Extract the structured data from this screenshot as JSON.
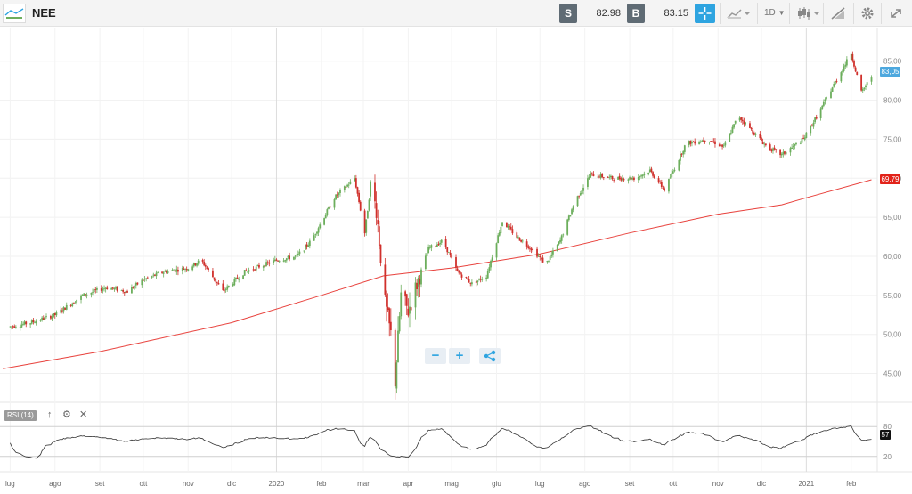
{
  "header": {
    "ticker": "NEE",
    "sell_tag": "S",
    "sell_price": "82.98",
    "buy_tag": "B",
    "buy_price": "83.15",
    "timeframe": "1D",
    "icons": [
      "crosshair-icon",
      "chart-style-icon",
      "candlestick-icon",
      "drawing-tools-icon",
      "settings-icon",
      "fullscreen-icon"
    ]
  },
  "zoom_controls": {
    "minus": "−",
    "plus": "+",
    "share_icon": "share-icon"
  },
  "colors": {
    "up": "#6cae5c",
    "down": "#d0302c",
    "ma": "#e8413c",
    "accent": "#2ea4e0",
    "rsi": "#333333",
    "current_price_bg": "#4ea8de",
    "ma_tag_bg": "#e2231a"
  },
  "chart_data": [
    {
      "type": "candlestick",
      "symbol": "NEE",
      "x_tick_labels": [
        "lug",
        "ago",
        "set",
        "ott",
        "nov",
        "dic",
        "2020",
        "feb",
        "mar",
        "apr",
        "mag",
        "giu",
        "lug",
        "ago",
        "set",
        "ott",
        "nov",
        "dic",
        "2021",
        "feb"
      ],
      "y_tick_labels": [
        "45,00",
        "50,00",
        "55,00",
        "60,00",
        "65,00",
        "70,00",
        "75,00",
        "80,00",
        "85,00"
      ],
      "ylim": [
        41.3,
        89.3
      ],
      "current_price_label": "83,05",
      "ma_label": "69,79",
      "price_path_anchors": [
        {
          "x": "2019-07-01",
          "y": 51
        },
        {
          "x": "2019-07-15",
          "y": 51.5
        },
        {
          "x": "2019-08-01",
          "y": 52.5
        },
        {
          "x": "2019-08-20",
          "y": 55
        },
        {
          "x": "2019-09-05",
          "y": 56
        },
        {
          "x": "2019-09-20",
          "y": 55.5
        },
        {
          "x": "2019-10-01",
          "y": 57
        },
        {
          "x": "2019-10-15",
          "y": 58
        },
        {
          "x": "2019-11-01",
          "y": 58.5
        },
        {
          "x": "2019-11-10",
          "y": 59.5
        },
        {
          "x": "2019-11-25",
          "y": 55.5
        },
        {
          "x": "2019-12-10",
          "y": 58
        },
        {
          "x": "2020-01-01",
          "y": 59.5
        },
        {
          "x": "2020-01-15",
          "y": 60
        },
        {
          "x": "2020-01-25",
          "y": 62
        },
        {
          "x": "2020-02-10",
          "y": 67.5
        },
        {
          "x": "2020-02-24",
          "y": 70
        },
        {
          "x": "2020-03-02",
          "y": 63
        },
        {
          "x": "2020-03-06",
          "y": 69
        },
        {
          "x": "2020-03-10",
          "y": 66
        },
        {
          "x": "2020-03-16",
          "y": 54
        },
        {
          "x": "2020-03-20",
          "y": 50
        },
        {
          "x": "2020-03-23",
          "y": 44
        },
        {
          "x": "2020-03-27",
          "y": 55
        },
        {
          "x": "2020-04-01",
          "y": 53
        },
        {
          "x": "2020-04-15",
          "y": 61
        },
        {
          "x": "2020-04-25",
          "y": 62
        },
        {
          "x": "2020-05-05",
          "y": 58
        },
        {
          "x": "2020-05-15",
          "y": 56.5
        },
        {
          "x": "2020-05-25",
          "y": 57.5
        },
        {
          "x": "2020-06-05",
          "y": 64.5
        },
        {
          "x": "2020-06-15",
          "y": 62.5
        },
        {
          "x": "2020-06-25",
          "y": 61
        },
        {
          "x": "2020-07-05",
          "y": 59
        },
        {
          "x": "2020-07-15",
          "y": 62
        },
        {
          "x": "2020-07-25",
          "y": 67
        },
        {
          "x": "2020-08-05",
          "y": 70.5
        },
        {
          "x": "2020-08-20",
          "y": 70
        },
        {
          "x": "2020-09-05",
          "y": 70
        },
        {
          "x": "2020-09-15",
          "y": 71
        },
        {
          "x": "2020-09-25",
          "y": 68.5
        },
        {
          "x": "2020-10-10",
          "y": 74.5
        },
        {
          "x": "2020-10-25",
          "y": 75
        },
        {
          "x": "2020-11-05",
          "y": 74
        },
        {
          "x": "2020-11-15",
          "y": 78
        },
        {
          "x": "2020-11-25",
          "y": 76
        },
        {
          "x": "2020-12-05",
          "y": 74
        },
        {
          "x": "2020-12-15",
          "y": 73
        },
        {
          "x": "2020-12-30",
          "y": 75
        },
        {
          "x": "2021-01-10",
          "y": 78.5
        },
        {
          "x": "2021-01-20",
          "y": 82
        },
        {
          "x": "2021-02-01",
          "y": 86
        },
        {
          "x": "2021-02-08",
          "y": 81
        },
        {
          "x": "2021-02-15",
          "y": 83
        }
      ],
      "moving_average": [
        {
          "x": "2019-06-26",
          "y": 45.6
        },
        {
          "x": "2019-09-01",
          "y": 47.8
        },
        {
          "x": "2019-12-01",
          "y": 51.5
        },
        {
          "x": "2020-02-01",
          "y": 55
        },
        {
          "x": "2020-03-15",
          "y": 57.5
        },
        {
          "x": "2020-05-01",
          "y": 58.5
        },
        {
          "x": "2020-07-01",
          "y": 60.3
        },
        {
          "x": "2020-09-01",
          "y": 63
        },
        {
          "x": "2020-11-01",
          "y": 65.4
        },
        {
          "x": "2020-12-15",
          "y": 66.6
        },
        {
          "x": "2021-01-01",
          "y": 67.5
        },
        {
          "x": "2021-02-15",
          "y": 69.8
        }
      ]
    },
    {
      "type": "line",
      "name": "RSI (14)",
      "label": "RSI (14)",
      "y_tick_labels": [
        "80",
        "20"
      ],
      "levels": [
        80,
        20
      ],
      "current_value": "57",
      "ylim": [
        0,
        100
      ]
    }
  ]
}
